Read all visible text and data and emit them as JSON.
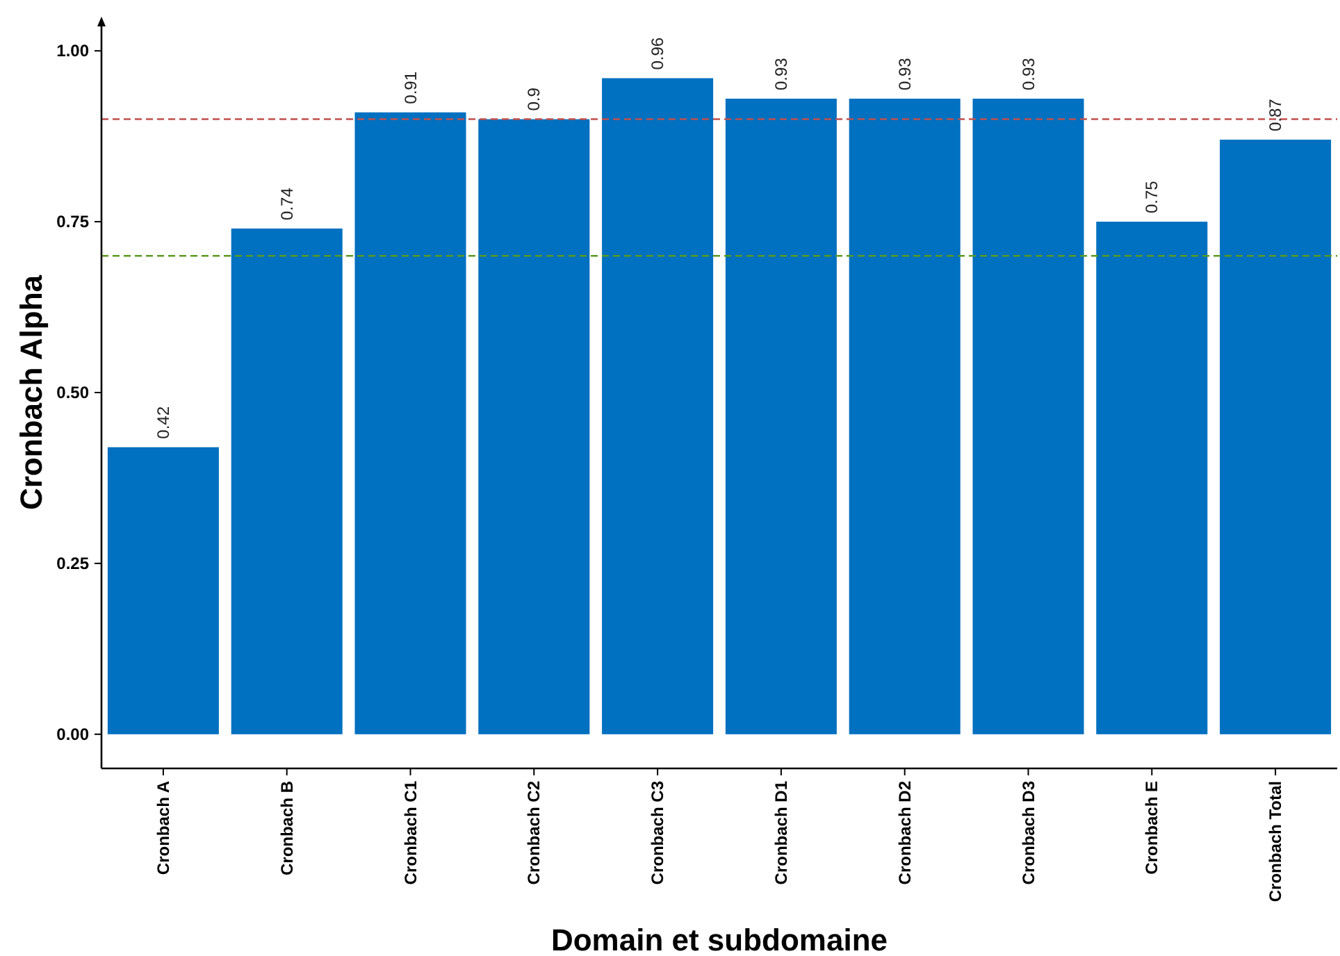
{
  "chart_data": {
    "type": "bar",
    "xlabel": "Domain et subdomaine",
    "ylabel": "Cronbach Alpha",
    "categories": [
      "Cronbach A",
      "Cronbach B",
      "Cronbach C1",
      "Cronbach C2",
      "Cronbach C3",
      "Cronbach D1",
      "Cronbach D2",
      "Cronbach D3",
      "Cronbach E",
      "Cronbach Total"
    ],
    "values": [
      0.42,
      0.74,
      0.91,
      0.9,
      0.96,
      0.93,
      0.93,
      0.93,
      0.75,
      0.87
    ],
    "value_labels": [
      "0.42",
      "0.74",
      "0.91",
      "0.9",
      "0.96",
      "0.93",
      "0.93",
      "0.93",
      "0.75",
      "0.87"
    ],
    "color": "#0070c0",
    "ylim": [
      -0.05,
      1.05
    ],
    "yticks": [
      {
        "value": 0,
        "label": "0.00"
      },
      {
        "value": 0.25,
        "label": "0.25"
      },
      {
        "value": 0.5,
        "label": "0.50"
      },
      {
        "value": 0.75,
        "label": "0.75"
      },
      {
        "value": 1,
        "label": "1.00"
      }
    ],
    "ref_lines": [
      {
        "axis": "y",
        "value": 0.9,
        "color": "#c0504d",
        "line_style": "dashed"
      },
      {
        "axis": "y",
        "value": 0.7,
        "color": "#5a9a1e",
        "line_style": "dashed"
      }
    ],
    "grid": false
  }
}
